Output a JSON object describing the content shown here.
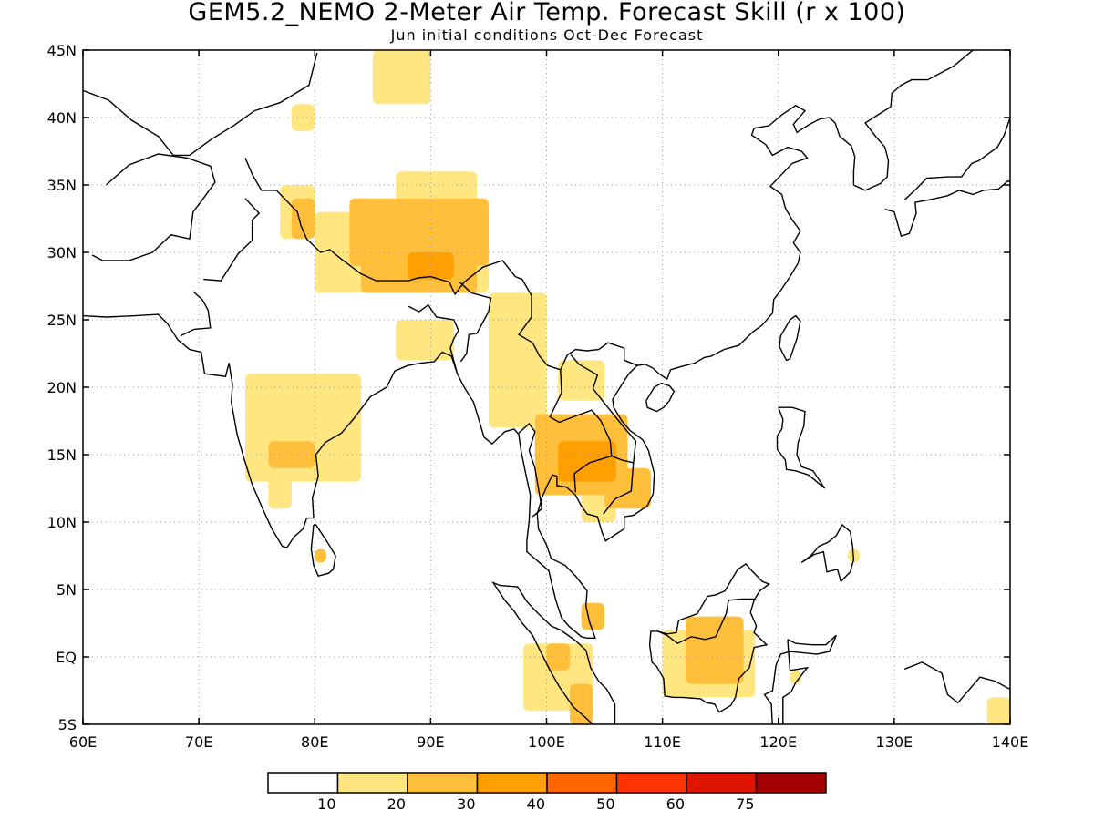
{
  "title": "GEM5.2_NEMO 2-Meter Air Temp. Forecast Skill (r x 100)",
  "subtitle": "Jun initial conditions  Oct-Dec Forecast",
  "map": {
    "lon_range": [
      60,
      140
    ],
    "lat_range": [
      -5,
      45
    ],
    "x_ticks": [
      {
        "value": 60,
        "label": "60E"
      },
      {
        "value": 70,
        "label": "70E"
      },
      {
        "value": 80,
        "label": "80E"
      },
      {
        "value": 90,
        "label": "90E"
      },
      {
        "value": 100,
        "label": "100E"
      },
      {
        "value": 110,
        "label": "110E"
      },
      {
        "value": 120,
        "label": "120E"
      },
      {
        "value": 130,
        "label": "130E"
      },
      {
        "value": 140,
        "label": "140E"
      }
    ],
    "y_ticks": [
      {
        "value": 45,
        "label": "45N"
      },
      {
        "value": 40,
        "label": "40N"
      },
      {
        "value": 35,
        "label": "35N"
      },
      {
        "value": 30,
        "label": "30N"
      },
      {
        "value": 25,
        "label": "25N"
      },
      {
        "value": 20,
        "label": "20N"
      },
      {
        "value": 15,
        "label": "15N"
      },
      {
        "value": 10,
        "label": "10N"
      },
      {
        "value": 5,
        "label": "5N"
      },
      {
        "value": 0,
        "label": "EQ"
      },
      {
        "value": -5,
        "label": "5S"
      }
    ],
    "grid": "dotted",
    "skill_regions": [
      {
        "lon": [
          85,
          90
        ],
        "lat": [
          41,
          45
        ],
        "level": 1
      },
      {
        "lon": [
          78,
          80
        ],
        "lat": [
          39,
          41
        ],
        "level": 1
      },
      {
        "lon": [
          77,
          80
        ],
        "lat": [
          31,
          35
        ],
        "level": 1
      },
      {
        "lon": [
          80,
          95
        ],
        "lat": [
          27,
          33
        ],
        "level": 1
      },
      {
        "lon": [
          87,
          94
        ],
        "lat": [
          32,
          36
        ],
        "level": 1
      },
      {
        "lon": [
          95,
          100
        ],
        "lat": [
          17,
          27
        ],
        "level": 1
      },
      {
        "lon": [
          87,
          92
        ],
        "lat": [
          22,
          25
        ],
        "level": 1
      },
      {
        "lon": [
          74,
          84
        ],
        "lat": [
          13,
          21
        ],
        "level": 1
      },
      {
        "lon": [
          76,
          78
        ],
        "lat": [
          11,
          14
        ],
        "level": 1
      },
      {
        "lon": [
          101,
          105
        ],
        "lat": [
          19,
          22
        ],
        "level": 1
      },
      {
        "lon": [
          103,
          106
        ],
        "lat": [
          10,
          14
        ],
        "level": 1
      },
      {
        "lon": [
          98,
          104
        ],
        "lat": [
          -4,
          1
        ],
        "level": 1
      },
      {
        "lon": [
          110,
          118
        ],
        "lat": [
          -3,
          2
        ],
        "level": 1
      },
      {
        "lon": [
          121,
          122
        ],
        "lat": [
          -2,
          -1
        ],
        "level": 1
      },
      {
        "lon": [
          126,
          127
        ],
        "lat": [
          7,
          8
        ],
        "level": 1
      },
      {
        "lon": [
          138,
          140
        ],
        "lat": [
          -5,
          -3
        ],
        "level": 1
      },
      {
        "lon": [
          83,
          95
        ],
        "lat": [
          29,
          34
        ],
        "level": 2
      },
      {
        "lon": [
          84,
          94
        ],
        "lat": [
          27,
          30
        ],
        "level": 2
      },
      {
        "lon": [
          78,
          80
        ],
        "lat": [
          31,
          34
        ],
        "level": 2
      },
      {
        "lon": [
          99,
          107
        ],
        "lat": [
          12,
          18
        ],
        "level": 2
      },
      {
        "lon": [
          105,
          109
        ],
        "lat": [
          11,
          14
        ],
        "level": 2
      },
      {
        "lon": [
          76,
          80
        ],
        "lat": [
          14,
          16
        ],
        "level": 2
      },
      {
        "lon": [
          112,
          117
        ],
        "lat": [
          -2,
          3
        ],
        "level": 2
      },
      {
        "lon": [
          102,
          104
        ],
        "lat": [
          -5,
          -2
        ],
        "level": 2
      },
      {
        "lon": [
          100,
          102
        ],
        "lat": [
          -1,
          1
        ],
        "level": 2
      },
      {
        "lon": [
          80,
          81
        ],
        "lat": [
          7,
          8
        ],
        "level": 2
      },
      {
        "lon": [
          103,
          105
        ],
        "lat": [
          2,
          4
        ],
        "level": 2
      },
      {
        "lon": [
          88,
          92
        ],
        "lat": [
          28,
          30
        ],
        "level": 3
      },
      {
        "lon": [
          101,
          106
        ],
        "lat": [
          13,
          16
        ],
        "level": 3
      }
    ]
  },
  "colorbar": {
    "colors": [
      "#ffffff",
      "#ffe680",
      "#ffbf3a",
      "#ff9f00",
      "#ff6600",
      "#ff3300",
      "#e01500",
      "#a50000"
    ],
    "labels": [
      "10",
      "20",
      "30",
      "40",
      "50",
      "60",
      "75"
    ]
  }
}
